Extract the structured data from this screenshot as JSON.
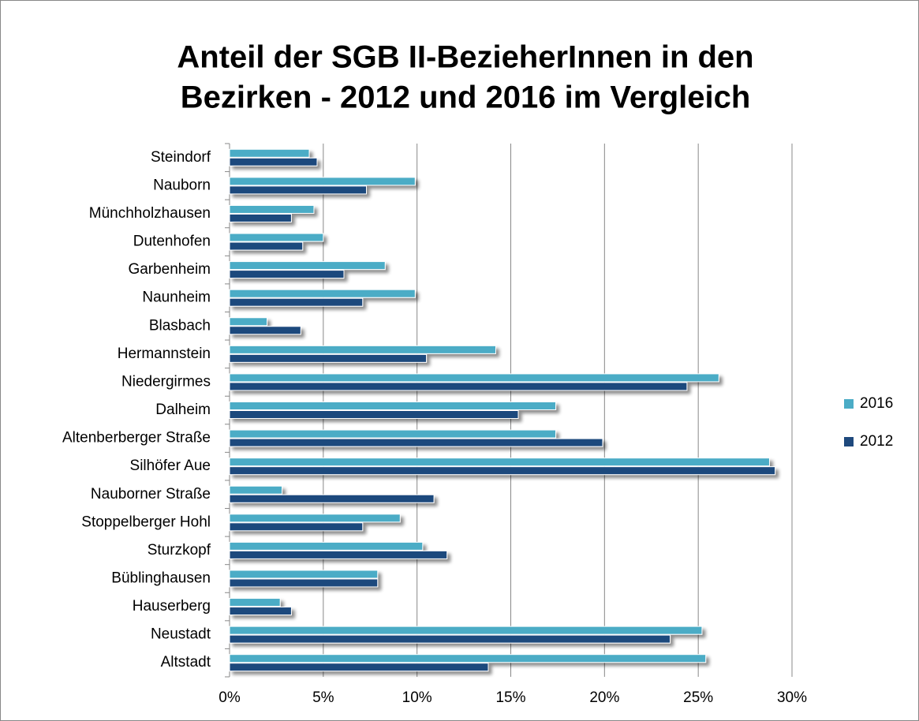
{
  "chart_data": {
    "type": "bar",
    "orientation": "horizontal",
    "title": [
      "Anteil der SGB II-BezieherInnen in den",
      "Bezirken - 2012 und 2016 im Vergleich"
    ],
    "categories": [
      "Steindorf",
      "Nauborn",
      "Münchholzhausen",
      "Dutenhofen",
      "Garbenheim",
      "Naunheim",
      "Blasbach",
      "Hermannstein",
      "Niedergirmes",
      "Dalheim",
      "Altenberberger Straße",
      "Silhöfer Aue",
      "Nauborner Straße",
      "Stoppelberger Hohl",
      "Sturzkopf",
      "Büblinghausen",
      "Hauserberg",
      "Neustadt",
      "Altstadt"
    ],
    "series": [
      {
        "name": "2016",
        "color": "#4bacc6",
        "values": [
          4.25,
          9.9,
          4.5,
          5.0,
          8.3,
          9.9,
          2.0,
          14.2,
          26.1,
          17.4,
          17.4,
          28.8,
          2.8,
          9.1,
          10.3,
          7.9,
          2.7,
          25.2,
          25.4
        ]
      },
      {
        "name": "2012",
        "color": "#1f497d",
        "values": [
          4.67,
          7.3,
          3.3,
          3.9,
          6.1,
          7.1,
          3.8,
          10.5,
          24.4,
          15.4,
          19.9,
          29.1,
          10.9,
          7.1,
          11.6,
          7.9,
          3.3,
          23.5,
          13.8
        ]
      }
    ],
    "xlim": [
      0,
      30
    ],
    "xticks": [
      {
        "value": 0,
        "label": "0%"
      },
      {
        "value": 5,
        "label": "5%"
      },
      {
        "value": 10,
        "label": "10%"
      },
      {
        "value": 15,
        "label": "15%"
      },
      {
        "value": 20,
        "label": "20%"
      },
      {
        "value": 25,
        "label": "25%"
      },
      {
        "value": 30,
        "label": "30%"
      }
    ],
    "grid": true,
    "legend": "right"
  }
}
